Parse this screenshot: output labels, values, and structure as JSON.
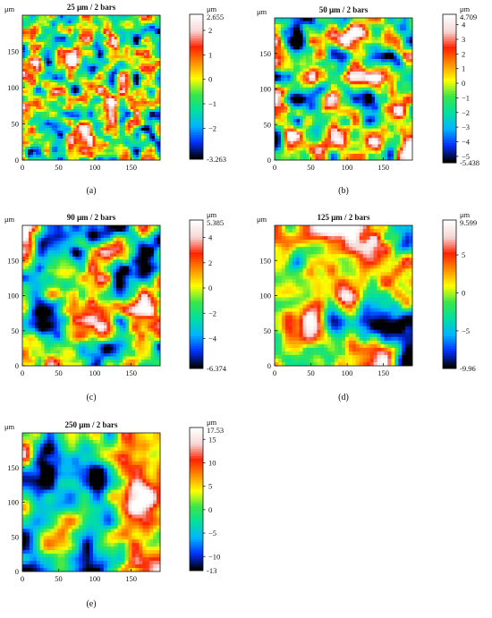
{
  "figure": {
    "panels": [
      {
        "id": "a",
        "caption": "(a)",
        "title": "25 μm / 2 bars",
        "y_unit": "μm",
        "x_ticks": [
          "0",
          "50",
          "100",
          "150"
        ],
        "y_ticks": [
          "0",
          "50",
          "100",
          "150"
        ],
        "colorbar_unit": "μm",
        "colorbar_max_label": "2.655",
        "colorbar_min_label": "-3.263",
        "colorbar_ticks": [
          {
            "value": 2,
            "label": "2"
          },
          {
            "value": 1,
            "label": "1"
          },
          {
            "value": 0,
            "label": "0"
          },
          {
            "value": -1,
            "label": "−1"
          },
          {
            "value": -2,
            "label": "−2"
          }
        ]
      },
      {
        "id": "b",
        "caption": "(b)",
        "title": "50 μm / 2 bars",
        "y_unit": "μm",
        "x_ticks": [
          "0",
          "50",
          "100",
          "150"
        ],
        "y_ticks": [
          "0",
          "50",
          "100",
          "150"
        ],
        "colorbar_unit": "μm",
        "colorbar_max_label": "4.709",
        "colorbar_min_label": "-5.438",
        "colorbar_ticks": [
          {
            "value": 4,
            "label": "4"
          },
          {
            "value": 3,
            "label": "3"
          },
          {
            "value": 2,
            "label": "2"
          },
          {
            "value": 1,
            "label": "1"
          },
          {
            "value": 0,
            "label": "0"
          },
          {
            "value": -1,
            "label": "−1"
          },
          {
            "value": -2,
            "label": "−2"
          },
          {
            "value": -3,
            "label": "−3"
          },
          {
            "value": -4,
            "label": "−4"
          },
          {
            "value": -5,
            "label": "−5"
          }
        ]
      },
      {
        "id": "c",
        "caption": "(c)",
        "title": "90 μm / 2 bars",
        "y_unit": "μm",
        "x_ticks": [
          "0",
          "50",
          "100",
          "150"
        ],
        "y_ticks": [
          "0",
          "50",
          "100",
          "150"
        ],
        "colorbar_unit": "μm",
        "colorbar_max_label": "5.385",
        "colorbar_min_label": "-6.374",
        "colorbar_ticks": [
          {
            "value": 4,
            "label": "4"
          },
          {
            "value": 2,
            "label": "2"
          },
          {
            "value": 0,
            "label": "0"
          },
          {
            "value": -2,
            "label": "−2"
          },
          {
            "value": -4,
            "label": "−4"
          }
        ]
      },
      {
        "id": "d",
        "caption": "(d)",
        "title": "125 μm / 2 bars",
        "y_unit": "μm",
        "x_ticks": [
          "0",
          "50",
          "100",
          "150"
        ],
        "y_ticks": [
          "0",
          "50",
          "100",
          "150"
        ],
        "colorbar_unit": "μm",
        "colorbar_max_label": "9.599",
        "colorbar_min_label": "-9.96",
        "colorbar_ticks": [
          {
            "value": 5,
            "label": "5"
          },
          {
            "value": 0,
            "label": "0"
          },
          {
            "value": -5,
            "label": "−5"
          }
        ]
      },
      {
        "id": "e",
        "caption": "(e)",
        "title": "250 μm / 2 bars",
        "y_unit": "μm",
        "x_ticks": [
          "0",
          "50",
          "100",
          "150"
        ],
        "y_ticks": [
          "0",
          "50",
          "100",
          "150"
        ],
        "colorbar_unit": "μm",
        "colorbar_max_label": "17.53",
        "colorbar_min_label": "-13",
        "colorbar_ticks": [
          {
            "value": 15,
            "label": "15"
          },
          {
            "value": 10,
            "label": "10"
          },
          {
            "value": 5,
            "label": "5"
          },
          {
            "value": 0,
            "label": "0"
          },
          {
            "value": -5,
            "label": "−5"
          },
          {
            "value": -10,
            "label": "−10"
          }
        ]
      }
    ]
  },
  "chart_data": [
    {
      "type": "heatmap",
      "panel": "a",
      "title": "25 μm / 2 bars",
      "xlabel": "",
      "ylabel": "μm",
      "xlim": [
        0,
        190
      ],
      "ylim": [
        0,
        200
      ],
      "x_ticks": [
        0,
        50,
        100,
        150
      ],
      "y_ticks": [
        0,
        50,
        100,
        150
      ],
      "colorbar": {
        "unit": "μm",
        "min": -3.263,
        "max": 2.655,
        "ticks": [
          2,
          1,
          0,
          -1,
          -2
        ]
      },
      "texture": "fine",
      "blob_scale": 1,
      "seed": 17
    },
    {
      "type": "heatmap",
      "panel": "b",
      "title": "50 μm / 2 bars",
      "xlabel": "",
      "ylabel": "μm",
      "xlim": [
        0,
        190
      ],
      "ylim": [
        0,
        200
      ],
      "x_ticks": [
        0,
        50,
        100,
        150
      ],
      "y_ticks": [
        0,
        50,
        100,
        150
      ],
      "colorbar": {
        "unit": "μm",
        "min": -5.438,
        "max": 4.709,
        "ticks": [
          4,
          3,
          2,
          1,
          0,
          -1,
          -2,
          -3,
          -4,
          -5
        ]
      },
      "texture": "medium",
      "blob_scale": 2,
      "seed": 29
    },
    {
      "type": "heatmap",
      "panel": "c",
      "title": "90 μm / 2 bars",
      "xlabel": "",
      "ylabel": "μm",
      "xlim": [
        0,
        190
      ],
      "ylim": [
        0,
        200
      ],
      "x_ticks": [
        0,
        50,
        100,
        150
      ],
      "y_ticks": [
        0,
        50,
        100,
        150
      ],
      "colorbar": {
        "unit": "μm",
        "min": -6.374,
        "max": 5.385,
        "ticks": [
          4,
          2,
          0,
          -2,
          -4
        ]
      },
      "texture": "medium",
      "blob_scale": 3,
      "seed": 43
    },
    {
      "type": "heatmap",
      "panel": "d",
      "title": "125 μm / 2 bars",
      "xlabel": "",
      "ylabel": "μm",
      "xlim": [
        0,
        190
      ],
      "ylim": [
        0,
        200
      ],
      "x_ticks": [
        0,
        50,
        100,
        150
      ],
      "y_ticks": [
        0,
        50,
        100,
        150
      ],
      "colorbar": {
        "unit": "μm",
        "min": -9.96,
        "max": 9.599,
        "ticks": [
          5,
          0,
          -5
        ]
      },
      "texture": "coarse",
      "blob_scale": 4,
      "seed": 61
    },
    {
      "type": "heatmap",
      "panel": "e",
      "title": "250 μm / 2 bars",
      "xlabel": "",
      "ylabel": "μm",
      "xlim": [
        0,
        190
      ],
      "ylim": [
        0,
        200
      ],
      "x_ticks": [
        0,
        50,
        100,
        150
      ],
      "y_ticks": [
        0,
        50,
        100,
        150
      ],
      "colorbar": {
        "unit": "μm",
        "min": -13,
        "max": 17.53,
        "ticks": [
          15,
          10,
          5,
          0,
          -5,
          -10
        ]
      },
      "texture": "very-coarse",
      "blob_scale": 5,
      "seed": 83
    }
  ],
  "colors": {
    "axis": "#111111",
    "background": "#ffffff",
    "colormap": [
      "#000000",
      "#0030ff",
      "#00b4ff",
      "#00e0a0",
      "#39e64a",
      "#ffff00",
      "#ff8f00",
      "#ff2200",
      "#f6d6d6",
      "#ffffff"
    ]
  }
}
